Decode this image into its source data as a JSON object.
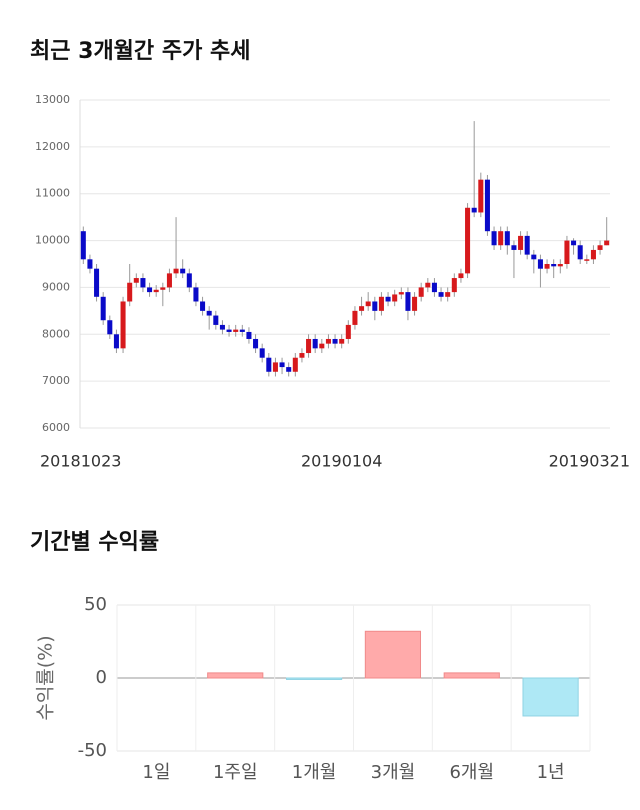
{
  "chart_data": [
    {
      "type": "candlestick",
      "title": "최근 3개월간 주가 추세",
      "categories": [
        "20181023",
        null,
        null,
        null,
        null,
        null,
        null,
        null,
        null,
        null,
        null,
        null,
        null,
        null,
        null,
        null,
        null,
        null,
        null,
        null,
        null,
        null,
        null,
        null,
        null,
        null,
        null,
        null,
        null,
        null,
        null,
        null,
        null,
        null,
        null,
        null,
        null,
        null,
        null,
        "20190104",
        null,
        null,
        null,
        null,
        null,
        null,
        null,
        null,
        null,
        null,
        null,
        null,
        null,
        null,
        null,
        null,
        null,
        null,
        null,
        null,
        null,
        null,
        null,
        null,
        null,
        null,
        null,
        null,
        null,
        null,
        null,
        null,
        null,
        null,
        null,
        null,
        null,
        null,
        null,
        "20190321"
      ],
      "open": [
        10200,
        9600,
        9400,
        8800,
        8300,
        8000,
        7700,
        8700,
        9100,
        9200,
        9000,
        8900,
        8950,
        9000,
        9300,
        9400,
        9300,
        9000,
        8700,
        8500,
        8400,
        8200,
        8100,
        8050,
        8100,
        8050,
        7900,
        7700,
        7500,
        7200,
        7400,
        7300,
        7200,
        7500,
        7600,
        7900,
        7700,
        7800,
        7900,
        7800,
        7900,
        8200,
        8500,
        8600,
        8700,
        8500,
        8800,
        8700,
        8850,
        8900,
        8500,
        8800,
        9000,
        9100,
        8900,
        8800,
        8900,
        9200,
        9300,
        10700,
        10600,
        11300,
        10200,
        9900,
        10200,
        9900,
        9800,
        10100,
        9700,
        9600,
        9400,
        9500,
        9450,
        9500,
        10000,
        9900,
        9600,
        9600,
        9800,
        9900
      ],
      "high": [
        10300,
        9700,
        9500,
        8900,
        8400,
        8100,
        8800,
        9500,
        9300,
        9300,
        9100,
        9050,
        9100,
        9400,
        10500,
        9600,
        9400,
        9100,
        8800,
        8600,
        8500,
        8300,
        8200,
        8200,
        8200,
        8150,
        8000,
        7800,
        7600,
        7500,
        7500,
        7400,
        7600,
        7700,
        8000,
        8000,
        7900,
        8000,
        8000,
        8000,
        8300,
        8600,
        8800,
        8900,
        8800,
        8900,
        8900,
        8950,
        9000,
        9000,
        8900,
        9100,
        9200,
        9200,
        9000,
        9000,
        9300,
        9400,
        10800,
        12550,
        11450,
        11400,
        10300,
        10300,
        10300,
        10000,
        10200,
        10200,
        9800,
        9700,
        9600,
        9600,
        9600,
        10100,
        10050,
        10000,
        9700,
        9900,
        10000,
        10500
      ],
      "low": [
        9500,
        9300,
        8700,
        8200,
        7900,
        7600,
        7600,
        8600,
        9000,
        8900,
        8800,
        8800,
        8600,
        8900,
        9200,
        9200,
        8900,
        8600,
        8400,
        8100,
        8100,
        8000,
        7950,
        7950,
        7950,
        7800,
        7600,
        7400,
        7100,
        7100,
        7150,
        7100,
        7100,
        7400,
        7500,
        7600,
        7600,
        7700,
        7700,
        7700,
        7800,
        8100,
        8400,
        8500,
        8300,
        8400,
        8600,
        8600,
        8750,
        8300,
        8400,
        8700,
        8900,
        8800,
        8700,
        8700,
        8800,
        9100,
        9200,
        10500,
        10500,
        10100,
        9800,
        9800,
        9700,
        9200,
        9700,
        9600,
        9300,
        9000,
        9300,
        9200,
        9300,
        9400,
        9700,
        9500,
        9500,
        9500,
        9700,
        9900
      ],
      "close": [
        9600,
        9400,
        8800,
        8300,
        8000,
        7700,
        8700,
        9100,
        9200,
        9000,
        8900,
        8950,
        9000,
        9300,
        9400,
        9300,
        9000,
        8700,
        8500,
        8400,
        8200,
        8100,
        8050,
        8100,
        8050,
        7900,
        7700,
        7500,
        7200,
        7400,
        7300,
        7200,
        7500,
        7600,
        7900,
        7700,
        7800,
        7900,
        7800,
        7900,
        8200,
        8500,
        8600,
        8700,
        8500,
        8800,
        8700,
        8850,
        8900,
        8500,
        8800,
        9000,
        9100,
        8900,
        8800,
        8900,
        9200,
        9300,
        10700,
        10600,
        11300,
        10200,
        9900,
        10200,
        9900,
        9800,
        10100,
        9700,
        9600,
        9400,
        9500,
        9450,
        9500,
        10000,
        9900,
        9600,
        9600,
        9800,
        9900,
        10000
      ],
      "ylim": [
        6000,
        13000
      ],
      "yticks": [
        6000,
        7000,
        8000,
        9000,
        10000,
        11000,
        12000,
        13000
      ],
      "up_color": "#d7191c",
      "down_color": "#0a0ac8",
      "grid": true
    },
    {
      "type": "bar",
      "title": "기간별 수익률",
      "ylabel": "수익률(%)",
      "categories": [
        "1일",
        "1주일",
        "1개월",
        "3개월",
        "6개월",
        "1년"
      ],
      "values": [
        0,
        3.5,
        -1,
        32,
        3.5,
        -26
      ],
      "ylim": [
        -50,
        50
      ],
      "yticks": [
        -50,
        0,
        50
      ],
      "positive_color": "#ffaaaa",
      "negative_color": "#aee8f5",
      "grid": true
    }
  ]
}
